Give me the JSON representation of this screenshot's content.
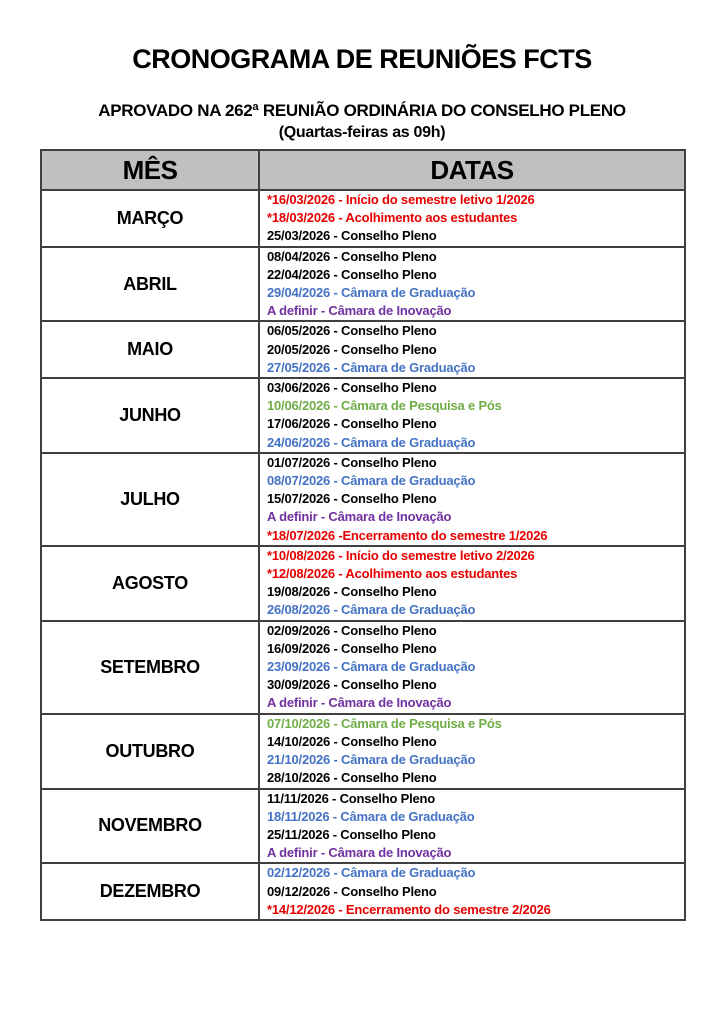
{
  "page": {
    "title": "CRONOGRAMA DE REUNIÕES FCTS",
    "subtitle": "APROVADO NA 262ª REUNIÃO ORDINÁRIA DO CONSELHO PLENO",
    "subtitle2": "(Quartas-feiras as 09h)"
  },
  "table": {
    "headers": [
      "MÊS",
      "DATAS"
    ],
    "header_bg": "#c0c0c0",
    "border_color": "#404040",
    "legend_colors": {
      "red": "#e60000",
      "black": "#000000",
      "blue": "#4472c4",
      "purple": "#7030a0",
      "green": "#70ad47"
    },
    "rows": [
      {
        "month": "MARÇO",
        "events": [
          {
            "text": "*16/03/2026 - Início do semestre letivo 1/2026",
            "color": "red"
          },
          {
            "text": "*18/03/2026 - Acolhimento aos estudantes",
            "color": "red"
          },
          {
            "text": "25/03/2026 - Conselho Pleno",
            "color": "black"
          }
        ]
      },
      {
        "month": "ABRIL",
        "events": [
          {
            "text": "08/04/2026 - Conselho Pleno",
            "color": "black"
          },
          {
            "text": "22/04/2026 - Conselho Pleno",
            "color": "black"
          },
          {
            "text": "29/04/2026 - Câmara de Graduação",
            "color": "blue"
          },
          {
            "text": "A definir - Câmara de Inovação",
            "color": "purple"
          }
        ]
      },
      {
        "month": "MAIO",
        "events": [
          {
            "text": "06/05/2026 - Conselho Pleno",
            "color": "black"
          },
          {
            "text": "20/05/2026 - Conselho Pleno",
            "color": "black"
          },
          {
            "text": "27/05/2026 - Câmara de Graduação",
            "color": "blue"
          }
        ]
      },
      {
        "month": "JUNHO",
        "events": [
          {
            "text": "03/06/2026 - Conselho Pleno",
            "color": "black"
          },
          {
            "text": "10/06/2026 - Câmara de Pesquisa e Pós",
            "color": "green"
          },
          {
            "text": "17/06/2026 - Conselho Pleno",
            "color": "black"
          },
          {
            "text": "24/06/2026 - Câmara de Graduação",
            "color": "blue"
          }
        ]
      },
      {
        "month": "JULHO",
        "events": [
          {
            "text": "01/07/2026 - Conselho Pleno",
            "color": "black"
          },
          {
            "text": "08/07/2026 - Câmara de Graduação",
            "color": "blue"
          },
          {
            "text": "15/07/2026 - Conselho Pleno",
            "color": "black"
          },
          {
            "text": "A definir - Câmara de Inovação",
            "color": "purple"
          },
          {
            "text": "*18/07/2026 -Encerramento do semestre 1/2026",
            "color": "red"
          }
        ]
      },
      {
        "month": "AGOSTO",
        "events": [
          {
            "text": "*10/08/2026 - Início do semestre letivo 2/2026",
            "color": "red"
          },
          {
            "text": "*12/08/2026 - Acolhimento aos estudantes",
            "color": "red"
          },
          {
            "text": "19/08/2026 - Conselho Pleno",
            "color": "black"
          },
          {
            "text": "26/08/2026 - Câmara de Graduação",
            "color": "blue"
          }
        ]
      },
      {
        "month": "SETEMBRO",
        "events": [
          {
            "text": "02/09/2026 - Conselho Pleno",
            "color": "black"
          },
          {
            "text": "16/09/2026 - Conselho Pleno",
            "color": "black"
          },
          {
            "text": "23/09/2026 - Câmara de Graduação",
            "color": "blue"
          },
          {
            "text": "30/09/2026 - Conselho Pleno",
            "color": "black"
          },
          {
            "text": "A definir - Câmara de Inovação",
            "color": "purple"
          }
        ]
      },
      {
        "month": "OUTUBRO",
        "events": [
          {
            "text": "07/10/2026 - Câmara de Pesquisa e Pós",
            "color": "green"
          },
          {
            "text": "14/10/2026 - Conselho Pleno",
            "color": "black"
          },
          {
            "text": "21/10/2026 - Câmara de Graduação",
            "color": "blue"
          },
          {
            "text": "28/10/2026 - Conselho Pleno",
            "color": "black"
          }
        ]
      },
      {
        "month": "NOVEMBRO",
        "events": [
          {
            "text": "11/11/2026 - Conselho Pleno",
            "color": "black"
          },
          {
            "text": "18/11/2026 - Câmara de Graduação",
            "color": "blue"
          },
          {
            "text": "25/11/2026 - Conselho Pleno",
            "color": "black"
          },
          {
            "text": "A definir - Câmara de Inovação",
            "color": "purple"
          }
        ]
      },
      {
        "month": "DEZEMBRO",
        "events": [
          {
            "text": "02/12/2026 - Câmara de Graduação",
            "color": "blue"
          },
          {
            "text": "09/12/2026 - Conselho Pleno",
            "color": "black"
          },
          {
            "text": "*14/12/2026 - Encerramento do semestre 2/2026",
            "color": "red"
          }
        ]
      }
    ]
  }
}
